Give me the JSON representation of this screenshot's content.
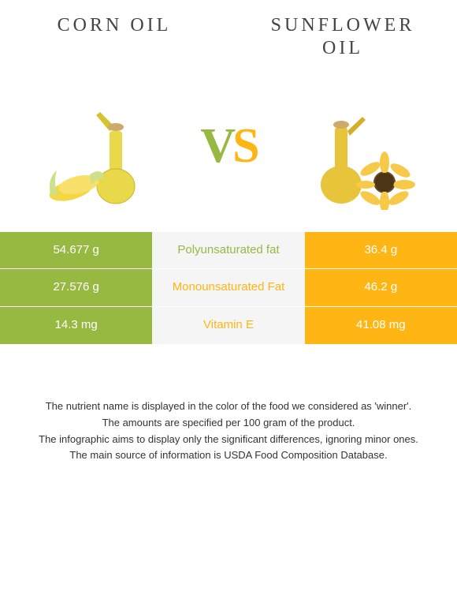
{
  "colors": {
    "left_bg": "#97b841",
    "right_bg": "#ffb615",
    "center_bg": "#f5f5f5",
    "white_text": "#ffffff",
    "header_text": "#444444",
    "footer_text": "#333333",
    "vs_v": "#97b841",
    "vs_s": "#ffb615"
  },
  "header": {
    "left": "CORN OIL",
    "right_line1": "SUNFLOWER",
    "right_line2": "OIL",
    "font_size": 24
  },
  "vs": {
    "v": "V",
    "s": "S",
    "font_size": 62
  },
  "table": {
    "cell_font_size": 15,
    "rows": [
      {
        "left": "54.677 g",
        "center": "Polyunsaturated fat",
        "right": "36.4 g",
        "winner": "left"
      },
      {
        "left": "27.576 g",
        "center": "Monounsaturated Fat",
        "right": "46.2 g",
        "winner": "right"
      },
      {
        "left": "14.3 mg",
        "center": "Vitamin E",
        "right": "41.08 mg",
        "winner": "right"
      }
    ]
  },
  "footer": {
    "lines": [
      "The nutrient name is displayed in the color of the food we considered as 'winner'.",
      "The amounts are specified per 100 gram of the product.",
      "The infographic aims to display only the significant differences, ignoring minor ones.",
      "The main source of information is USDA Food Composition Database."
    ]
  }
}
